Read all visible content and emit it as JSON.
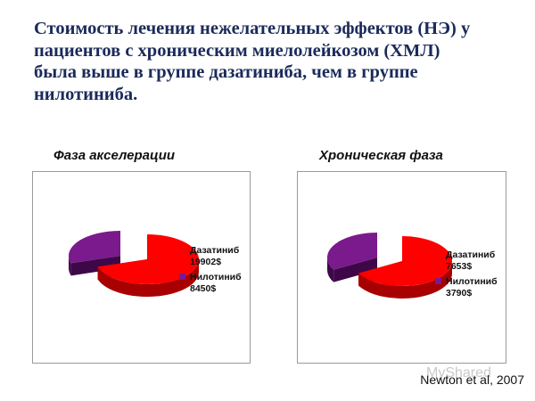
{
  "title_lines": [
    "Стоимость лечения нежелательных эффектов (НЭ) у",
    "пациентов с хроническим миелолейкозом (ХМЛ)",
    "была выше  в группе дазатиниба, чем в группе",
    "нилотиниба."
  ],
  "chart_data": [
    {
      "type": "pie",
      "title": "Фаза акселерации",
      "categories": [
        "Дазатиниб",
        "Нилотиниб"
      ],
      "values": [
        19902,
        8450
      ],
      "labels": [
        [
          "Дазатиниб",
          "19902$"
        ],
        [
          "Нилотиниб",
          "8450$"
        ]
      ],
      "colors": [
        "#ff0000",
        "#7a1a8c"
      ],
      "dark_colors": [
        "#a80000",
        "#3e0848"
      ],
      "exploded": "Нилотиниб",
      "style": "3d",
      "legend": "right"
    },
    {
      "type": "pie",
      "title": "Хроническая фаза",
      "categories": [
        "Дазатиниб",
        "Нилотиниб"
      ],
      "values": [
        7653,
        3790
      ],
      "labels": [
        [
          "Дазатиниб",
          "7653$"
        ],
        [
          "Нилотиниб",
          "3790$"
        ]
      ],
      "colors": [
        "#ff0000",
        "#7a1a8c"
      ],
      "dark_colors": [
        "#a80000",
        "#3e0848"
      ],
      "exploded": "Нилотиниб",
      "style": "3d",
      "legend": "right"
    }
  ],
  "watermark": "MyShared",
  "citation": "Newton et al, 2007"
}
